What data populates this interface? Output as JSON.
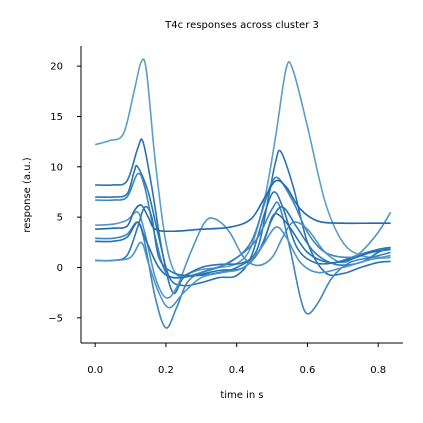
{
  "chart_data": {
    "type": "line",
    "title": "T4c responses across cluster 3",
    "xlabel": "time in s",
    "ylabel": "response (a.u.)",
    "xlim": [
      -0.04,
      0.87
    ],
    "ylim": [
      -7.5,
      22
    ],
    "xticks": [
      0.0,
      0.2,
      0.4,
      0.6,
      0.8
    ],
    "xtick_labels": [
      "0.0",
      "0.2",
      "0.4",
      "0.6",
      "0.8"
    ],
    "yticks": [
      -5,
      0,
      5,
      10,
      15,
      20
    ],
    "ytick_labels": [
      "−5",
      "0",
      "5",
      "10",
      "15",
      "20"
    ],
    "grid": false,
    "legend": "none",
    "series": [
      {
        "color": "#5a9ec9",
        "points": [
          [
            0.0,
            12.2
          ],
          [
            0.04,
            12.6
          ],
          [
            0.08,
            13.3
          ],
          [
            0.11,
            17.5
          ],
          [
            0.13,
            20.4
          ],
          [
            0.145,
            19.5
          ],
          [
            0.17,
            10.5
          ],
          [
            0.2,
            2.5
          ],
          [
            0.23,
            -0.7
          ],
          [
            0.27,
            -0.5
          ],
          [
            0.3,
            -0.2
          ],
          [
            0.35,
            0.0
          ],
          [
            0.4,
            0.4
          ],
          [
            0.44,
            2.0
          ],
          [
            0.48,
            7.0
          ],
          [
            0.51,
            13.0
          ],
          [
            0.54,
            19.8
          ],
          [
            0.56,
            19.5
          ],
          [
            0.6,
            14.0
          ],
          [
            0.65,
            6.5
          ],
          [
            0.7,
            2.5
          ],
          [
            0.75,
            1.2
          ],
          [
            0.8,
            1.0
          ],
          [
            0.835,
            1.2
          ]
        ]
      },
      {
        "color": "#2b73b3",
        "points": [
          [
            0.0,
            8.2
          ],
          [
            0.05,
            8.2
          ],
          [
            0.09,
            8.6
          ],
          [
            0.12,
            11.8
          ],
          [
            0.135,
            12.5
          ],
          [
            0.16,
            8.0
          ],
          [
            0.19,
            1.5
          ],
          [
            0.22,
            -2.5
          ],
          [
            0.25,
            -1.0
          ],
          [
            0.3,
            0.0
          ],
          [
            0.35,
            0.3
          ],
          [
            0.42,
            0.5
          ],
          [
            0.46,
            2.0
          ],
          [
            0.49,
            7.0
          ],
          [
            0.51,
            10.5
          ],
          [
            0.525,
            11.5
          ],
          [
            0.56,
            8.0
          ],
          [
            0.6,
            2.5
          ],
          [
            0.65,
            -0.5
          ],
          [
            0.7,
            -0.6
          ],
          [
            0.75,
            0.0
          ],
          [
            0.8,
            0.5
          ],
          [
            0.835,
            0.6
          ]
        ]
      },
      {
        "color": "#2b73b3",
        "points": [
          [
            0.0,
            7.0
          ],
          [
            0.05,
            7.0
          ],
          [
            0.09,
            7.3
          ],
          [
            0.11,
            9.5
          ],
          [
            0.12,
            10.0
          ],
          [
            0.15,
            7.5
          ],
          [
            0.18,
            3.0
          ],
          [
            0.21,
            -1.0
          ],
          [
            0.25,
            -1.8
          ],
          [
            0.3,
            -1.5
          ],
          [
            0.35,
            -1.0
          ],
          [
            0.4,
            -0.8
          ],
          [
            0.44,
            1.0
          ],
          [
            0.48,
            5.5
          ],
          [
            0.505,
            7.5
          ],
          [
            0.53,
            6.0
          ],
          [
            0.57,
            2.0
          ],
          [
            0.62,
            0.5
          ],
          [
            0.68,
            0.5
          ],
          [
            0.74,
            1.2
          ],
          [
            0.8,
            1.8
          ],
          [
            0.835,
            2.0
          ]
        ]
      },
      {
        "color": "#3a86bf",
        "points": [
          [
            0.0,
            6.7
          ],
          [
            0.05,
            6.7
          ],
          [
            0.09,
            7.0
          ],
          [
            0.12,
            9.3
          ],
          [
            0.14,
            8.0
          ],
          [
            0.17,
            3.0
          ],
          [
            0.2,
            -0.5
          ],
          [
            0.24,
            -1.0
          ],
          [
            0.3,
            -0.5
          ],
          [
            0.38,
            0.5
          ],
          [
            0.44,
            2.5
          ],
          [
            0.48,
            6.5
          ],
          [
            0.5,
            8.5
          ],
          [
            0.52,
            8.8
          ],
          [
            0.56,
            6.5
          ],
          [
            0.6,
            3.5
          ],
          [
            0.65,
            1.5
          ],
          [
            0.72,
            1.0
          ],
          [
            0.78,
            1.5
          ],
          [
            0.835,
            1.8
          ]
        ]
      },
      {
        "color": "#4f95c7",
        "points": [
          [
            0.0,
            4.2
          ],
          [
            0.05,
            4.3
          ],
          [
            0.09,
            4.7
          ],
          [
            0.12,
            5.5
          ],
          [
            0.14,
            3.5
          ],
          [
            0.17,
            -1.0
          ],
          [
            0.2,
            -3.0
          ],
          [
            0.23,
            -2.0
          ],
          [
            0.27,
            1.5
          ],
          [
            0.31,
            4.5
          ],
          [
            0.34,
            4.8
          ],
          [
            0.38,
            3.5
          ],
          [
            0.42,
            1.0
          ],
          [
            0.46,
            0.2
          ],
          [
            0.5,
            1.0
          ],
          [
            0.53,
            3.0
          ],
          [
            0.56,
            4.5
          ],
          [
            0.6,
            3.8
          ],
          [
            0.65,
            1.5
          ],
          [
            0.7,
            0.5
          ],
          [
            0.75,
            1.5
          ],
          [
            0.8,
            3.5
          ],
          [
            0.835,
            5.5
          ]
        ]
      },
      {
        "color": "#1f6aae",
        "points": [
          [
            0.0,
            3.8
          ],
          [
            0.05,
            3.9
          ],
          [
            0.09,
            4.1
          ],
          [
            0.11,
            5.6
          ],
          [
            0.13,
            6.2
          ],
          [
            0.15,
            5.0
          ],
          [
            0.17,
            3.8
          ],
          [
            0.22,
            3.6
          ],
          [
            0.3,
            3.8
          ],
          [
            0.38,
            4.0
          ],
          [
            0.44,
            4.8
          ],
          [
            0.48,
            7.0
          ],
          [
            0.51,
            8.6
          ],
          [
            0.54,
            8.0
          ],
          [
            0.58,
            5.8
          ],
          [
            0.63,
            4.6
          ],
          [
            0.7,
            4.4
          ],
          [
            0.78,
            4.4
          ],
          [
            0.835,
            4.4
          ]
        ]
      },
      {
        "color": "#3a86bf",
        "points": [
          [
            0.0,
            2.9
          ],
          [
            0.05,
            2.9
          ],
          [
            0.09,
            3.3
          ],
          [
            0.12,
            4.5
          ],
          [
            0.14,
            2.5
          ],
          [
            0.17,
            -3.0
          ],
          [
            0.2,
            -6.0
          ],
          [
            0.23,
            -4.0
          ],
          [
            0.26,
            -1.5
          ],
          [
            0.3,
            -0.5
          ],
          [
            0.36,
            0.2
          ],
          [
            0.42,
            1.5
          ],
          [
            0.46,
            3.0
          ],
          [
            0.5,
            5.8
          ],
          [
            0.52,
            6.2
          ],
          [
            0.55,
            2.0
          ],
          [
            0.58,
            -3.0
          ],
          [
            0.6,
            -4.6
          ],
          [
            0.63,
            -3.5
          ],
          [
            0.67,
            -1.0
          ],
          [
            0.72,
            0.5
          ],
          [
            0.78,
            1.0
          ],
          [
            0.835,
            1.5
          ]
        ]
      },
      {
        "color": "#2470b0",
        "points": [
          [
            0.0,
            2.6
          ],
          [
            0.05,
            2.6
          ],
          [
            0.09,
            3.0
          ],
          [
            0.12,
            4.5
          ],
          [
            0.14,
            3.0
          ],
          [
            0.18,
            0.0
          ],
          [
            0.22,
            -1.0
          ],
          [
            0.28,
            -0.8
          ],
          [
            0.35,
            -0.3
          ],
          [
            0.42,
            0.0
          ],
          [
            0.47,
            2.0
          ],
          [
            0.5,
            5.0
          ],
          [
            0.52,
            5.2
          ],
          [
            0.55,
            4.0
          ],
          [
            0.6,
            1.5
          ],
          [
            0.66,
            0.5
          ],
          [
            0.72,
            0.8
          ],
          [
            0.78,
            1.5
          ],
          [
            0.835,
            1.8
          ]
        ]
      },
      {
        "color": "#2a78b5",
        "points": [
          [
            0.0,
            0.7
          ],
          [
            0.05,
            0.7
          ],
          [
            0.09,
            1.2
          ],
          [
            0.12,
            4.0
          ],
          [
            0.14,
            6.0
          ],
          [
            0.16,
            5.0
          ],
          [
            0.18,
            1.0
          ],
          [
            0.22,
            -0.5
          ],
          [
            0.28,
            -0.8
          ],
          [
            0.35,
            -0.5
          ],
          [
            0.4,
            0.0
          ],
          [
            0.46,
            1.5
          ],
          [
            0.5,
            4.8
          ],
          [
            0.53,
            6.0
          ],
          [
            0.57,
            4.0
          ],
          [
            0.62,
            1.5
          ],
          [
            0.68,
            0.3
          ],
          [
            0.75,
            0.5
          ],
          [
            0.8,
            1.5
          ],
          [
            0.835,
            2.0
          ]
        ]
      },
      {
        "color": "#4f95c7",
        "points": [
          [
            0.0,
            0.7
          ],
          [
            0.05,
            0.7
          ],
          [
            0.1,
            1.0
          ],
          [
            0.13,
            2.5
          ],
          [
            0.15,
            0.5
          ],
          [
            0.18,
            -2.5
          ],
          [
            0.21,
            -4.0
          ],
          [
            0.25,
            -2.5
          ],
          [
            0.3,
            -1.0
          ],
          [
            0.36,
            -0.5
          ],
          [
            0.42,
            0.0
          ],
          [
            0.47,
            2.0
          ],
          [
            0.51,
            4.0
          ],
          [
            0.54,
            3.0
          ],
          [
            0.58,
            0.5
          ],
          [
            0.63,
            -0.5
          ],
          [
            0.7,
            0.0
          ],
          [
            0.78,
            0.8
          ],
          [
            0.835,
            1.0
          ]
        ]
      }
    ]
  }
}
